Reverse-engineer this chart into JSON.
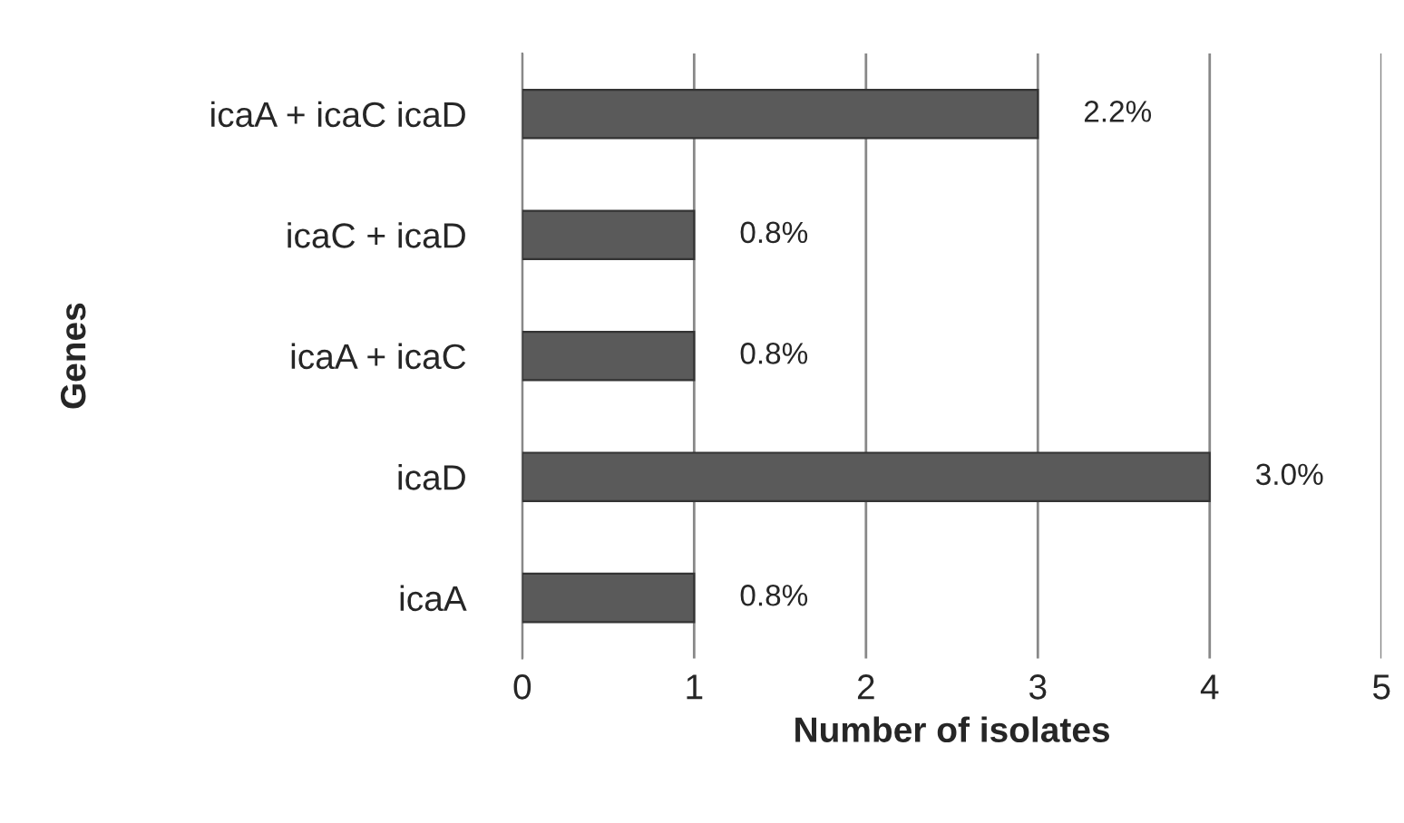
{
  "chart_data": {
    "type": "bar",
    "orientation": "horizontal",
    "xlabel": "Number of isolates",
    "ylabel": "Genes",
    "categories": [
      "icaA + icaC icaD",
      "icaC + icaD",
      "icaA + icaC",
      "icaD",
      "icaA"
    ],
    "values": [
      3,
      1,
      1,
      4,
      1
    ],
    "color": "#5a5a5a",
    "annotations": [
      {
        "text": "2.2%",
        "x": 3,
        "y": "icaA + icaC icaD"
      },
      {
        "text": "0.8%",
        "x": 1,
        "y": "icaC + icaD"
      },
      {
        "text": "0.8%",
        "x": 1,
        "y": "icaA + icaC"
      },
      {
        "text": "3.0%",
        "x": 4,
        "y": "icaD"
      },
      {
        "text": "0.8%",
        "x": 1,
        "y": "icaA"
      }
    ],
    "xlim": [
      0,
      5
    ],
    "xticks": [
      0,
      1,
      2,
      3,
      4,
      5
    ],
    "grid": "x",
    "legend": false
  }
}
